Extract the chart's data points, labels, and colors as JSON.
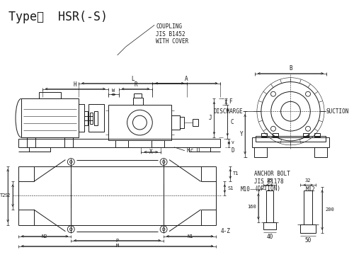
{
  "title": "Type：  HSR(-S)",
  "bg_color": "#ffffff",
  "line_color": "#1a1a1a",
  "lw": 0.7,
  "thin_lw": 0.4,
  "coupling_label": "COUPLING\nJIS B1452\nWITH COVER",
  "discharge_label": "DISCHARGE",
  "suction_label": "SUCTION",
  "anchor_label": "ANCHOR BOLT\nJIS B1178\n(OPTION)"
}
